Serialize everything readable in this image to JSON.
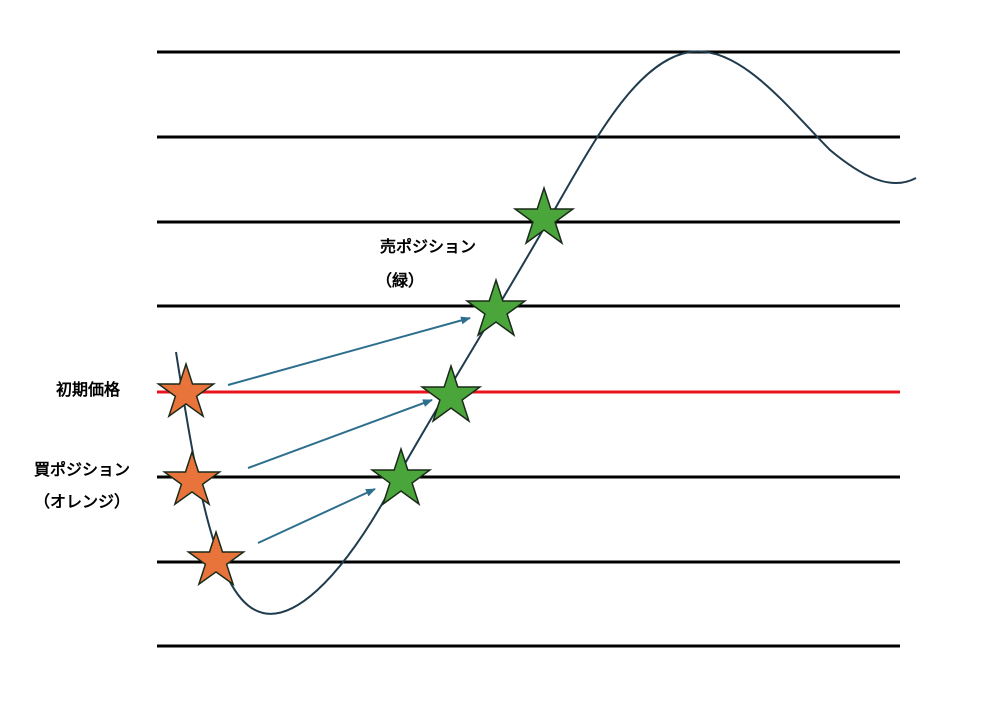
{
  "labels": {
    "initial_price": "初期価格",
    "buy_positions_line1": "買ポジション",
    "buy_positions_line2": "（オレンジ）",
    "sell_positions_line1": "売ポジション",
    "sell_positions_line2": "（緑）"
  },
  "colors": {
    "grid_line": "#000000",
    "initial_price_line": "#e8141b",
    "price_curve": "#1f3b4d",
    "arrow": "#2e6f8e",
    "buy_star_fill": "#e8743b",
    "sell_star_fill": "#4aa63a",
    "star_stroke": "#1a2a1a"
  }
}
